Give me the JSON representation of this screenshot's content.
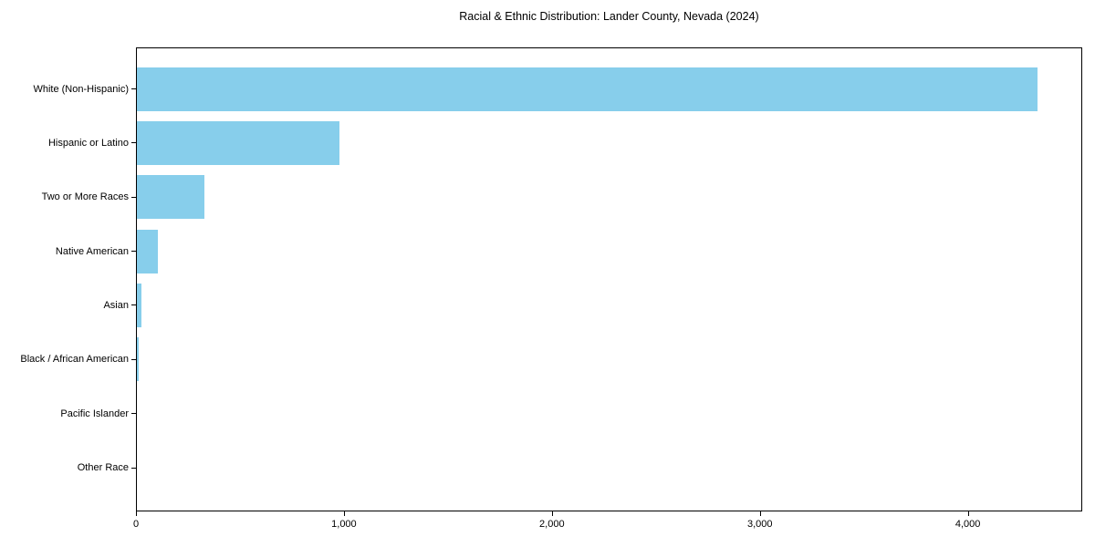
{
  "figure": {
    "background": "#ffffff",
    "text_color": "#000000",
    "axis_color": "#000000"
  },
  "chart_data": {
    "type": "bar",
    "orientation": "horizontal",
    "title": "Racial & Ethnic Distribution: Lander County, Nevada (2024)",
    "xlabel": "",
    "ylabel": "",
    "categories": [
      "White (Non-Hispanic)",
      "Hispanic or Latino",
      "Two or More Races",
      "Native American",
      "Asian",
      "Black / African American",
      "Pacific Islander",
      "Other Race"
    ],
    "values": [
      4330,
      975,
      325,
      100,
      22,
      10,
      0,
      0
    ],
    "xlim": [
      0,
      4550
    ],
    "x_ticks": [
      0,
      1000,
      2000,
      3000,
      4000
    ],
    "x_tick_labels": [
      "0",
      "1,000",
      "2,000",
      "3,000",
      "4,000"
    ],
    "bar_color": "#87CEEB",
    "grid": false,
    "legend": null
  }
}
